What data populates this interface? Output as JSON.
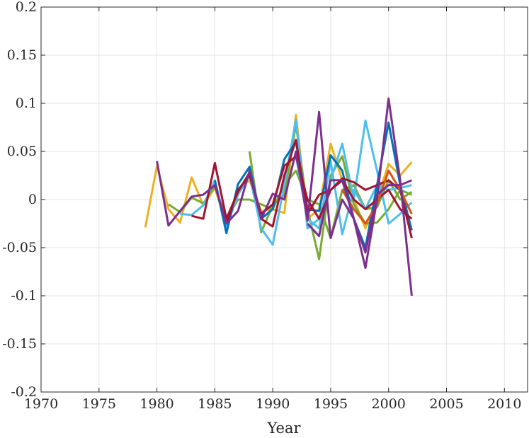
{
  "chart_data": {
    "type": "line",
    "title": "",
    "xlabel": "Year",
    "ylabel": "",
    "xlim": [
      1970,
      2012
    ],
    "ylim": [
      -0.2,
      0.2
    ],
    "grid": true,
    "legend": "none",
    "xticks": [
      1970,
      1975,
      1980,
      1985,
      1990,
      1995,
      2000,
      2005,
      2010
    ],
    "xtick_labels": [
      "1970",
      "1975",
      "1980",
      "1985",
      "1990",
      "1995",
      "2000",
      "2005",
      "2010"
    ],
    "yticks": [
      0.2,
      0.15,
      0.1,
      0.05,
      0,
      -0.05,
      -0.1,
      -0.15,
      -0.2
    ],
    "ytick_labels": [
      "0.2",
      "0.15",
      "0.1",
      "0.05",
      "0",
      "-0.05",
      "-0.1",
      "-0.15",
      "-0.2"
    ],
    "series": [
      {
        "color": "#EDB120",
        "x": [
          1979,
          1980,
          1981,
          1982,
          1983,
          1984,
          1985,
          1986,
          1987,
          1988,
          1989,
          1990,
          1991,
          1992,
          1993,
          1994,
          1995,
          1996,
          1997,
          1998,
          1999,
          2000,
          2001,
          2002
        ],
        "y": [
          -0.029,
          0.035,
          -0.01,
          -0.024,
          0.023,
          -0.006,
          0.012,
          -0.025,
          0.01,
          0.02,
          -0.012,
          -0.01,
          -0.014,
          0.088,
          -0.02,
          -0.01,
          0.058,
          0.02,
          0.0,
          -0.03,
          0.0,
          0.037,
          0.025,
          0.039
        ]
      },
      {
        "color": "#77AC30",
        "x": [
          1981,
          1982,
          1983,
          1984,
          1985,
          1986,
          1987,
          1988,
          1989,
          1990,
          1991,
          1992,
          1993,
          1994,
          1995,
          1996,
          1997,
          1998,
          1999,
          2000,
          2001,
          2002
        ],
        "y": [
          -0.005,
          -0.013,
          0.002,
          -0.004,
          0.014,
          -0.02,
          0.0,
          0.0,
          -0.005,
          -0.01,
          0.015,
          0.03,
          0.0,
          -0.005,
          -0.04,
          0.01,
          0.015,
          -0.01,
          -0.008,
          0.02,
          0.0,
          0.008
        ]
      },
      {
        "color": "#77AC30",
        "x": [
          1988,
          1989,
          1990,
          1991,
          1992,
          1993,
          1994,
          1995,
          1996,
          1997,
          1998,
          1999,
          2000,
          2001,
          2002
        ],
        "y": [
          0.05,
          -0.034,
          -0.006,
          0.005,
          0.078,
          -0.01,
          -0.062,
          0.025,
          0.045,
          -0.005,
          -0.025,
          -0.024,
          -0.01,
          0.01,
          0.005
        ]
      },
      {
        "color": "#4DBEEE",
        "x": [
          1982,
          1983,
          1984,
          1985,
          1986,
          1987,
          1988,
          1989,
          1990,
          1991,
          1992,
          1993,
          1994,
          1995,
          1996,
          1997,
          1998,
          1999,
          2000,
          2001,
          2002
        ],
        "y": [
          -0.015,
          -0.016,
          -0.006,
          0.02,
          -0.028,
          0.005,
          0.025,
          -0.03,
          -0.047,
          0.015,
          0.083,
          -0.03,
          -0.02,
          0.02,
          0.058,
          0.0,
          0.082,
          0.03,
          -0.025,
          -0.015,
          -0.003
        ]
      },
      {
        "color": "#4DBEEE",
        "x": [
          1992,
          1993,
          1994,
          1995,
          1996,
          1997,
          1998,
          1999,
          2000,
          2001,
          2002
        ],
        "y": [
          0.045,
          -0.02,
          -0.03,
          0.04,
          -0.036,
          0.01,
          -0.01,
          0.015,
          0.01,
          0.012,
          0.015
        ]
      },
      {
        "color": "#0072BD",
        "x": [
          1985,
          1986,
          1987,
          1988,
          1989,
          1990,
          1991,
          1992,
          1993,
          1994,
          1995,
          1996,
          1997,
          1998,
          1999,
          2000,
          2001,
          2002
        ],
        "y": [
          0.02,
          -0.035,
          0.016,
          0.034,
          -0.02,
          -0.01,
          0.042,
          0.06,
          -0.01,
          -0.012,
          0.046,
          0.03,
          -0.02,
          -0.05,
          0.015,
          0.08,
          0.015,
          -0.032
        ]
      },
      {
        "color": "#A2142F",
        "x": [
          1983,
          1984,
          1985,
          1986,
          1987,
          1988,
          1989,
          1990,
          1991,
          1992,
          1993,
          1994,
          1995,
          1996,
          1997,
          1998,
          1999,
          2000,
          2001,
          2002
        ],
        "y": [
          -0.017,
          -0.02,
          0.038,
          -0.02,
          0.008,
          0.028,
          -0.02,
          -0.028,
          0.025,
          0.062,
          -0.015,
          0.005,
          0.01,
          0.022,
          0.018,
          0.01,
          0.015,
          0.02,
          0.01,
          -0.04
        ]
      },
      {
        "color": "#A2142F",
        "x": [
          1986,
          1987,
          1988,
          1989,
          1990,
          1991,
          1992,
          1993,
          1994,
          1995,
          1996,
          1997,
          1998,
          1999,
          2000,
          2001,
          2002
        ],
        "y": [
          -0.025,
          0.01,
          0.025,
          -0.015,
          -0.005,
          0.035,
          0.045,
          0.0,
          -0.02,
          0.01,
          0.02,
          0.0,
          -0.01,
          0.0,
          0.01,
          -0.01,
          -0.02
        ]
      },
      {
        "color": "#D95319",
        "x": [
          1996,
          1997,
          1998,
          1999,
          2000,
          2001,
          2002
        ],
        "y": [
          0.01,
          -0.01,
          -0.025,
          -0.005,
          0.03,
          0.01,
          -0.015
        ]
      },
      {
        "color": "#7E2F8E",
        "x": [
          1980,
          1981,
          1982,
          1983,
          1984,
          1985,
          1986,
          1987,
          1988,
          1989,
          1990,
          1991,
          1992,
          1993,
          1994,
          1995,
          1996,
          1997,
          1998,
          1999,
          2000,
          2001,
          2002
        ],
        "y": [
          0.04,
          -0.027,
          -0.012,
          0.003,
          0.005,
          0.015,
          -0.025,
          -0.012,
          0.03,
          -0.02,
          0.006,
          0.0,
          0.05,
          -0.022,
          0.091,
          -0.04,
          0.0,
          -0.02,
          -0.071,
          0.0,
          0.105,
          0.02,
          -0.1
        ]
      },
      {
        "color": "#7E2F8E",
        "x": [
          1993,
          1994,
          1995,
          1996,
          1997,
          1998,
          1999,
          2000,
          2001,
          2002
        ],
        "y": [
          -0.025,
          -0.038,
          0.02,
          0.02,
          -0.02,
          -0.055,
          0.005,
          0.015,
          0.015,
          0.02
        ]
      }
    ]
  }
}
